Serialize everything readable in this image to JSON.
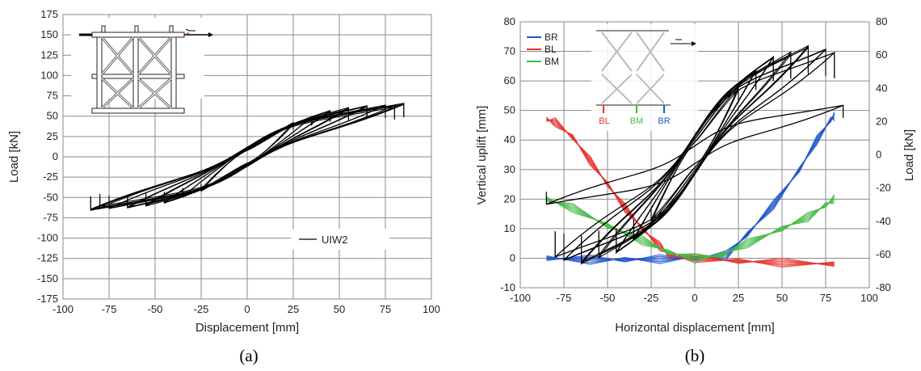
{
  "panels": [
    {
      "caption": "(a)",
      "chart_data": {
        "type": "line",
        "title": "",
        "xlabel": "Displacement [mm]",
        "ylabel": "Load [kN]",
        "xlim": [
          -100,
          100
        ],
        "ylim": [
          -175,
          175
        ],
        "x_ticks": [
          -100,
          -75,
          -50,
          -25,
          0,
          25,
          50,
          75,
          100
        ],
        "y_ticks": [
          175,
          150,
          125,
          100,
          75,
          50,
          25,
          0,
          -25,
          -50,
          -75,
          -100,
          -125,
          -150,
          -175
        ],
        "grid": true,
        "legend": {
          "position": "bottom-right",
          "entries": [
            "UIW2"
          ]
        },
        "series": [
          {
            "name": "UIW2",
            "color": "#000000",
            "cycles": [
              {
                "amp": 25,
                "peak_load": 45
              },
              {
                "amp": 35,
                "peak_load": 52
              },
              {
                "amp": 45,
                "peak_load": 57
              },
              {
                "amp": 55,
                "peak_load": 60
              },
              {
                "amp": 65,
                "peak_load": 62
              },
              {
                "amp": 75,
                "peak_load": 63
              },
              {
                "amp": 80,
                "peak_load": 62
              },
              {
                "amp": 85,
                "peak_load": 65
              }
            ]
          }
        ]
      }
    },
    {
      "caption": "(b)",
      "chart_data": {
        "type": "line",
        "title": "",
        "xlabel": "Horizontal displacement [mm]",
        "ylabel": "Vertical uplift [mm]",
        "ylabel_right": "Load [kN]",
        "xlim": [
          -100,
          100
        ],
        "ylim": [
          -10,
          80
        ],
        "ylim_right": [
          -80,
          80
        ],
        "x_ticks": [
          -100,
          -75,
          -50,
          -25,
          0,
          25,
          50,
          75,
          100
        ],
        "y_ticks": [
          80,
          70,
          60,
          50,
          40,
          30,
          20,
          10,
          0,
          -10
        ],
        "y_ticks_right": [
          80,
          60,
          40,
          20,
          0,
          -20,
          -40,
          -60,
          -80
        ],
        "grid": true,
        "legend": {
          "position": "top-left",
          "entries": [
            "BR",
            "BL",
            "BM"
          ]
        },
        "inset_labels": [
          "BL",
          "BM",
          "BR"
        ],
        "series": [
          {
            "name": "BR",
            "color": "#2255cc",
            "axis": "left",
            "x": [
              -85,
              -60,
              -40,
              -20,
              0,
              18,
              30,
              45,
              60,
              70,
              78,
              80
            ],
            "y": [
              0,
              -0.5,
              -0.5,
              -0.3,
              0,
              1,
              8,
              18,
              30,
              40,
              47,
              48
            ]
          },
          {
            "name": "BL",
            "color": "#e8332b",
            "axis": "left",
            "x": [
              -85,
              -80,
              -70,
              -60,
              -50,
              -40,
              -30,
              -20,
              -15,
              0,
              25,
              50,
              80
            ],
            "y": [
              47,
              46,
              41,
              33,
              25,
              17,
              10,
              4,
              1,
              0,
              -1,
              -1.5,
              -2
            ]
          },
          {
            "name": "BM",
            "color": "#44bb44",
            "axis": "left",
            "x": [
              -85,
              -70,
              -50,
              -30,
              -15,
              0,
              15,
              30,
              50,
              65,
              75,
              80
            ],
            "y": [
              20,
              17,
              11,
              6,
              2,
              0,
              1,
              5,
              10,
              14,
              18,
              20
            ]
          },
          {
            "name": "Load",
            "color": "#000000",
            "axis": "right",
            "cycles": [
              {
                "amp": 25,
                "peak_load": 43
              },
              {
                "amp": 35,
                "peak_load": 52
              },
              {
                "amp": 45,
                "peak_load": 58
              },
              {
                "amp": 55,
                "peak_load": 62
              },
              {
                "amp": 65,
                "peak_load": 64
              },
              {
                "amp": 75,
                "peak_load": 63
              },
              {
                "amp": 80,
                "peak_load": 60
              },
              {
                "amp": 85,
                "peak_load": 30
              }
            ]
          }
        ]
      }
    }
  ]
}
